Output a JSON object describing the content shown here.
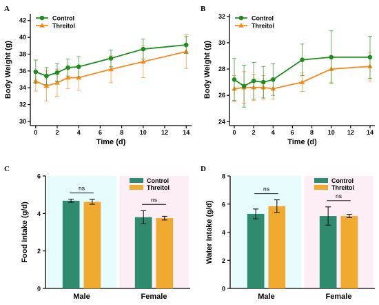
{
  "panels": [
    {
      "letter": "A"
    },
    {
      "letter": "B"
    },
    {
      "letter": "C"
    },
    {
      "letter": "D"
    }
  ],
  "colors": {
    "control_line": "#1f8c1f",
    "threitol_line": "#f58a1f",
    "control_bar": "#2e8b6f",
    "threitol_bar": "#f0aa30",
    "male_bg": "#e6fbfb",
    "female_bg": "#fdeef6"
  },
  "chart_data": [
    {
      "type": "line",
      "panel": "A",
      "xlabel": "Time (d)",
      "ylabel": "Body Weight (g)",
      "xlim": [
        -0.5,
        14.5
      ],
      "ylim": [
        29.5,
        42.8
      ],
      "xticks": [
        0,
        2,
        4,
        6,
        8,
        10,
        12,
        14
      ],
      "yticks": [
        30,
        32,
        34,
        36,
        38,
        40,
        42
      ],
      "legend_position": "top-left",
      "grid": false,
      "x": [
        0,
        1,
        2,
        3,
        4,
        7,
        10,
        14
      ],
      "series": [
        {
          "name": "Control",
          "marker": "circle",
          "values": [
            35.9,
            35.4,
            35.8,
            36.4,
            36.5,
            37.5,
            38.6,
            39.1
          ],
          "errors": [
            1.4,
            1.0,
            1.1,
            1.0,
            1.2,
            1.0,
            1.2,
            1.0
          ]
        },
        {
          "name": "Threitol",
          "marker": "triangle",
          "values": [
            34.8,
            34.2,
            34.6,
            35.2,
            35.2,
            36.2,
            37.1,
            38.3
          ],
          "errors": [
            1.2,
            1.8,
            1.6,
            1.3,
            1.5,
            1.6,
            1.9,
            2.0
          ]
        }
      ]
    },
    {
      "type": "line",
      "panel": "B",
      "xlabel": "Time (d)",
      "ylabel": "Body Weight (g)",
      "xlim": [
        -0.5,
        14.5
      ],
      "ylim": [
        23.7,
        32.2
      ],
      "xticks": [
        0,
        2,
        4,
        6,
        8,
        10,
        12,
        14
      ],
      "yticks": [
        24,
        26,
        28,
        30,
        32
      ],
      "legend_position": "top-left",
      "grid": false,
      "x": [
        0,
        1,
        2,
        3,
        4,
        7,
        10,
        14
      ],
      "series": [
        {
          "name": "Control",
          "marker": "circle",
          "values": [
            27.2,
            26.7,
            27.1,
            27.0,
            27.2,
            28.7,
            28.9,
            28.9
          ],
          "errors": [
            1.6,
            1.6,
            1.4,
            1.2,
            1.2,
            1.2,
            2.0,
            1.6
          ]
        },
        {
          "name": "Threitol",
          "marker": "triangle",
          "values": [
            26.5,
            26.6,
            26.6,
            26.6,
            26.5,
            27.0,
            28.0,
            28.2
          ],
          "errors": [
            1.0,
            1.2,
            1.0,
            0.9,
            0.8,
            0.7,
            1.0,
            1.1
          ]
        }
      ]
    },
    {
      "type": "bar",
      "panel": "C",
      "xlabel": "",
      "ylabel": "Food Intake (g/d)",
      "ylim": [
        0,
        6
      ],
      "yticks": [
        0,
        2,
        4,
        6
      ],
      "categories": [
        "Male",
        "Female"
      ],
      "legend_position": "top-right",
      "grid": false,
      "series": [
        {
          "name": "Control",
          "values": [
            4.68,
            3.8
          ],
          "errors": [
            0.08,
            0.35
          ]
        },
        {
          "name": "Threitol",
          "values": [
            4.62,
            3.75
          ],
          "errors": [
            0.13,
            0.1
          ]
        }
      ],
      "annotations": [
        "ns",
        "ns"
      ]
    },
    {
      "type": "bar",
      "panel": "D",
      "xlabel": "",
      "ylabel": "Water Intake (g/d)",
      "ylim": [
        0,
        8
      ],
      "yticks": [
        0,
        2,
        4,
        6,
        8
      ],
      "categories": [
        "Male",
        "Female"
      ],
      "legend_position": "top-right",
      "grid": false,
      "series": [
        {
          "name": "Control",
          "values": [
            5.3,
            5.15
          ],
          "errors": [
            0.35,
            0.65
          ]
        },
        {
          "name": "Threitol",
          "values": [
            5.85,
            5.15
          ],
          "errors": [
            0.45,
            0.12
          ]
        }
      ],
      "annotations": [
        "ns",
        "ns"
      ]
    }
  ]
}
